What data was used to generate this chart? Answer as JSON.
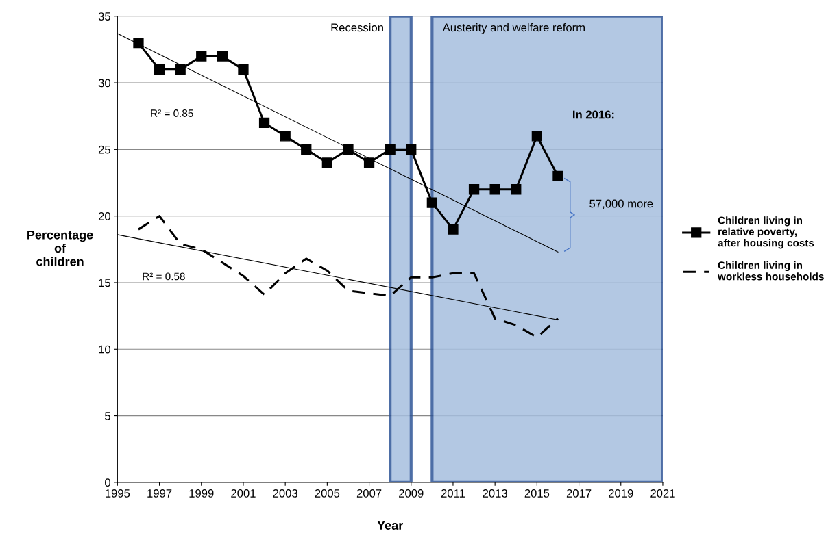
{
  "chart_data": {
    "type": "line",
    "xlabel": "Year",
    "ylabel": "Percentage of children",
    "xlim": [
      1995,
      2021
    ],
    "xticks": [
      1995,
      1997,
      1999,
      2001,
      2003,
      2005,
      2007,
      2009,
      2011,
      2013,
      2015,
      2017,
      2019,
      2021
    ],
    "ylim": [
      0,
      35
    ],
    "yticks": [
      0,
      5,
      10,
      15,
      20,
      25,
      30,
      35
    ],
    "grid": "y",
    "legend": "right",
    "series": [
      {
        "name": "Children living in relative poverty, after housing costs",
        "color": "#000000",
        "marker": "square",
        "line_style": "solid",
        "x": [
          1996,
          1997,
          1998,
          1999,
          2000,
          2001,
          2002,
          2003,
          2004,
          2005,
          2006,
          2007,
          2008,
          2009,
          2010,
          2011,
          2012,
          2013,
          2014,
          2015,
          2016
        ],
        "values": [
          33,
          31,
          31,
          32,
          32,
          31,
          27,
          26,
          25,
          24,
          25,
          24,
          25,
          25,
          21,
          19,
          22,
          22,
          22,
          26,
          23
        ]
      },
      {
        "name": "Children living in workless households",
        "color": "#000000",
        "marker": "none",
        "line_style": "dashed",
        "x": [
          1996,
          1997,
          1998,
          1999,
          2000,
          2001,
          2002,
          2003,
          2004,
          2005,
          2006,
          2007,
          2008,
          2009,
          2010,
          2011,
          2012,
          2013,
          2014,
          2015,
          2016
        ],
        "values": [
          19.0,
          20.0,
          17.9,
          17.5,
          16.5,
          15.5,
          14.1,
          15.7,
          16.8,
          15.9,
          14.4,
          14.2,
          14.0,
          15.4,
          15.4,
          15.7,
          15.7,
          12.3,
          11.8,
          10.9,
          12.3
        ]
      },
      {
        "color": "#000000",
        "marker": "none",
        "line_style": "solid",
        "x": [
          1995,
          2016
        ],
        "values": [
          33.7,
          17.3
        ]
      },
      {
        "color": "#000000",
        "marker": "none",
        "line_style": "solid",
        "x": [
          1995,
          2016
        ],
        "values": [
          18.6,
          12.2
        ]
      }
    ],
    "bands": [
      {
        "axis": "x",
        "from": 2008,
        "to": 2009,
        "label": "Recession",
        "color": "#a6bfdf"
      },
      {
        "axis": "x",
        "from": 2010,
        "to": 2021,
        "label": "Austerity and welfare reform",
        "color": "#a6bfdf"
      }
    ],
    "annotations": [
      "R² = 0.85",
      "R² = 0.58",
      "In 2016:",
      "57,000 more"
    ]
  }
}
